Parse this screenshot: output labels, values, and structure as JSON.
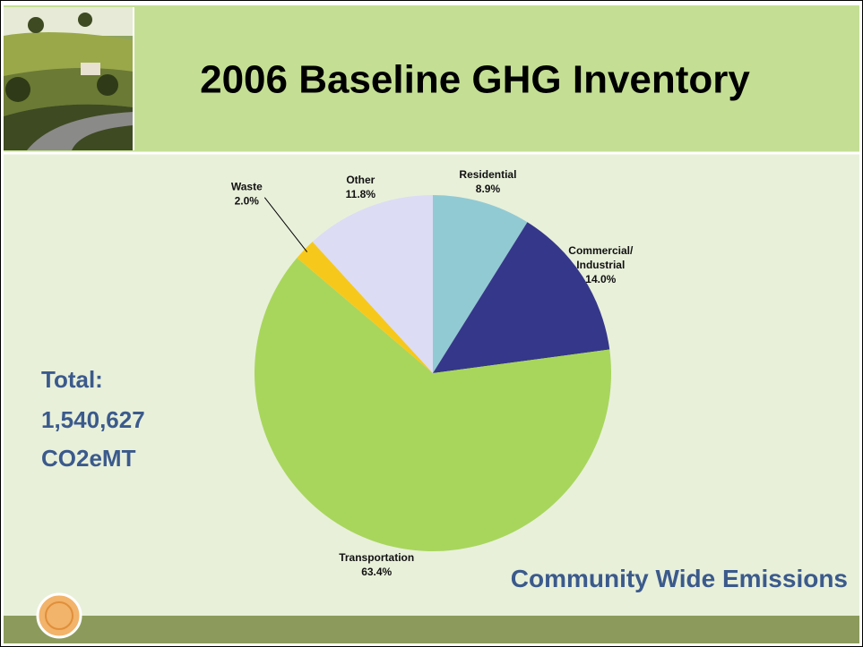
{
  "chart_data": {
    "type": "pie",
    "title": "2006 Baseline GHG Inventory",
    "subtitle": "Community Wide Emissions",
    "total": {
      "label": "Total:",
      "value": "1,540,627",
      "unit": "CO2eMT"
    },
    "categories": [
      "Residential",
      "Commercial/Industrial",
      "Transportation",
      "Waste",
      "Other"
    ],
    "values": [
      8.9,
      14.0,
      63.4,
      2.0,
      11.8
    ],
    "value_labels": [
      "8.9%",
      "14.0%",
      "63.4%",
      "2.0%",
      "11.8%"
    ],
    "colors": [
      "#92cad3",
      "#35378a",
      "#a8d65c",
      "#f7c81c",
      "#dcdcf4"
    ]
  }
}
